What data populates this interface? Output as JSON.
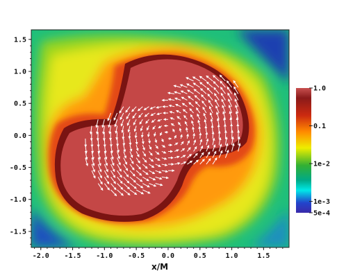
{
  "chart_data": {
    "type": "heatmap",
    "title": "",
    "xlabel": "x/M",
    "ylabel": "",
    "xlim": [
      -2.15,
      1.9
    ],
    "ylim": [
      -1.75,
      1.65
    ],
    "x_ticks": [
      -2.0,
      -1.5,
      -1.0,
      -0.5,
      0.0,
      0.5,
      1.0,
      1.5
    ],
    "x_tick_labels": [
      "-2.0",
      "-1.5",
      "-1.0",
      "-0.5",
      "0.0",
      "0.5",
      "1.0",
      "1.5"
    ],
    "y_ticks": [
      1.5,
      1.0,
      0.5,
      0.0,
      -0.5,
      -1.0,
      -1.5
    ],
    "y_tick_labels": [
      "1.5",
      "1.0",
      "0.5",
      "0.0",
      "-0.5",
      "-1.0",
      "-1.5"
    ],
    "colorbar": {
      "scale": "log",
      "range": [
        0.0005,
        1.0
      ],
      "ticks": [
        1.0,
        0.1,
        0.01,
        0.001,
        0.0005
      ],
      "tick_labels": [
        "1.0",
        "0.1",
        "1e-2",
        "1e-3",
        "5e-4"
      ],
      "colors": [
        "#2d2dbb",
        "#00e6e6",
        "#22aa22",
        "#e6e600",
        "#ff8800",
        "#dd3311",
        "#7a1010",
        "#c8504f"
      ]
    },
    "vector_field": {
      "present": true,
      "color": "#ffffff",
      "description": "velocity arrows showing counter-clockwise rotation in high-density core"
    },
    "grid": false
  }
}
